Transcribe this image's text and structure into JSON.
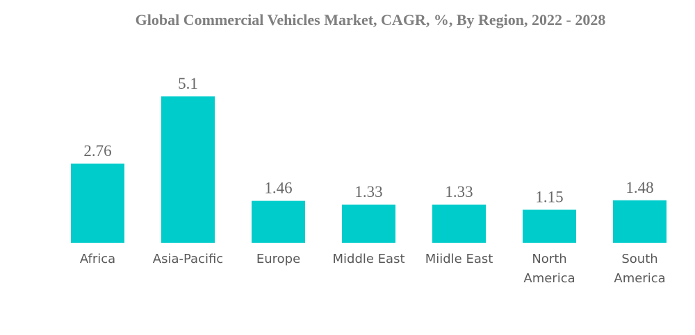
{
  "chart_data": {
    "type": "bar",
    "title": "Global Commercial Vehicles Market, CAGR, %, By Region, 2022 - 2028",
    "xlabel": "",
    "ylabel": "",
    "categories": [
      [
        "Africa"
      ],
      [
        "Asia-Pacific"
      ],
      [
        "Europe"
      ],
      [
        "Middle East"
      ],
      [
        "Miidle East"
      ],
      [
        "North",
        "America"
      ],
      [
        "South",
        "America"
      ]
    ],
    "values": [
      2.76,
      5.1,
      1.46,
      1.33,
      1.33,
      1.15,
      1.48
    ],
    "value_labels": [
      "2.76",
      "5.1",
      "1.46",
      "1.33",
      "1.33",
      "1.15",
      "1.48"
    ],
    "ylim": [
      0,
      5.1
    ],
    "grid": false,
    "legend": "none",
    "bar_color": "#00CCCC"
  }
}
